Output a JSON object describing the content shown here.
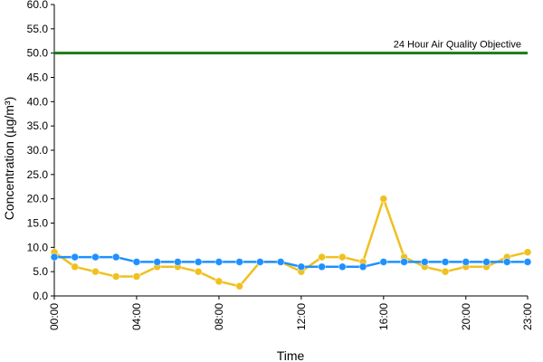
{
  "chart_data": {
    "type": "line",
    "xlabel": "Time",
    "ylabel": "Concentration (µg/m³)",
    "ylim": [
      0,
      60
    ],
    "y_ticks": [
      0,
      5,
      10,
      15,
      20,
      25,
      30,
      35,
      40,
      45,
      50,
      55,
      60
    ],
    "y_tick_labels": [
      "0.0",
      "5.0",
      "10.0",
      "15.0",
      "20.0",
      "25.0",
      "30.0",
      "35.0",
      "40.0",
      "45.0",
      "50.0",
      "55.0",
      "60.0"
    ],
    "x": [
      "00:00",
      "01:00",
      "02:00",
      "03:00",
      "04:00",
      "05:00",
      "06:00",
      "07:00",
      "08:00",
      "09:00",
      "10:00",
      "11:00",
      "12:00",
      "13:00",
      "14:00",
      "15:00",
      "16:00",
      "17:00",
      "18:00",
      "19:00",
      "20:00",
      "21:00",
      "22:00",
      "23:00"
    ],
    "x_tick_labels": [
      "00:00",
      "04:00",
      "08:00",
      "12:00",
      "16:00",
      "20:00",
      "23:00"
    ],
    "grid": false,
    "series": [
      {
        "color": "#f0c020",
        "values": [
          9,
          6,
          5,
          4,
          4,
          6,
          6,
          5,
          3,
          2,
          7,
          7,
          5,
          8,
          8,
          7,
          20,
          8,
          6,
          5,
          6,
          6,
          8,
          9
        ]
      },
      {
        "color": "#1e90ff",
        "values": [
          8,
          8,
          8,
          8,
          7,
          7,
          7,
          7,
          7,
          7,
          7,
          7,
          6,
          6,
          6,
          6,
          7,
          7,
          7,
          7,
          7,
          7,
          7,
          7
        ]
      }
    ],
    "reference_line": {
      "value": 50,
      "label": "24 Hour Air Quality Objective",
      "color": "#1a7a1a"
    }
  }
}
